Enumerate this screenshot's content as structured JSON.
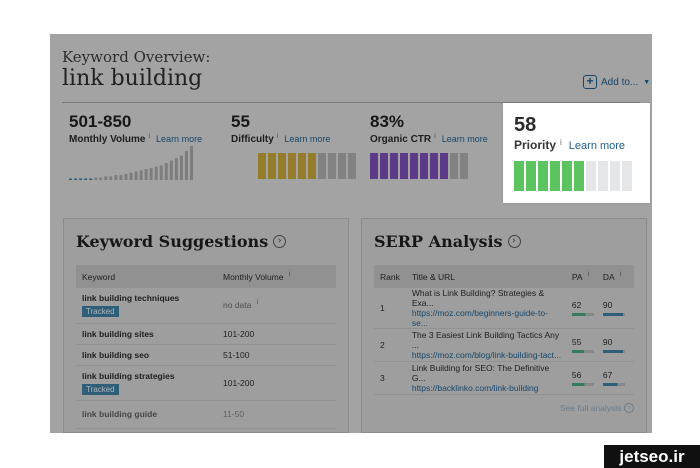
{
  "header": {
    "overview_label": "Keyword Overview:",
    "keyword": "link building",
    "add_to_label": "Add to...",
    "add_icon": "plus-box-icon",
    "caret_icon": "caret-down-icon"
  },
  "metrics": {
    "volume": {
      "value": "501-850",
      "label": "Monthly Volume",
      "learn": "Learn more",
      "info": "i"
    },
    "difficulty": {
      "value": "55",
      "label": "Difficulty",
      "learn": "Learn more",
      "info": "i",
      "filled": 6,
      "total": 10,
      "color": "#c9a93a"
    },
    "ctr": {
      "value": "83%",
      "label": "Organic CTR",
      "learn": "Learn more",
      "info": "i",
      "filled": 8,
      "total": 10,
      "color": "#7c4fb8"
    },
    "priority": {
      "value": "58",
      "label": "Priority",
      "learn": "Learn more",
      "info": "i",
      "filled": 6,
      "total": 10,
      "color": "#5cc45e"
    }
  },
  "volume_trend": [
    1,
    1,
    1,
    1,
    1,
    2,
    2,
    3,
    3,
    4,
    4,
    5,
    6,
    7,
    8,
    9,
    10,
    11,
    12,
    14,
    16,
    18,
    20,
    24,
    28
  ],
  "keyword_suggestions": {
    "title": "Keyword Suggestions",
    "columns": [
      "Keyword",
      "Monthly Volume"
    ],
    "info": "i",
    "rows": [
      {
        "keyword": "link building techniques",
        "tag": "Tracked",
        "volume": "no data"
      },
      {
        "keyword": "link building sites",
        "tag": "",
        "volume": "101-200"
      },
      {
        "keyword": "link building seo",
        "tag": "",
        "volume": "51-100"
      },
      {
        "keyword": "link building strategies",
        "tag": "Tracked",
        "volume": "101-200"
      },
      {
        "keyword": "link building guide",
        "tag": "",
        "volume": "11-50"
      }
    ]
  },
  "serp_analysis": {
    "title": "SERP Analysis",
    "columns": [
      "Rank",
      "Title & URL",
      "PA",
      "DA"
    ],
    "info": "i",
    "rows": [
      {
        "rank": "1",
        "title": "What is Link Building? Strategies & Exa...",
        "url": "https://moz.com/beginners-guide-to-se...",
        "pa": "62",
        "da": "90"
      },
      {
        "rank": "2",
        "title": "The 3 Easiest Link Building Tactics Any ...",
        "url": "https://moz.com/blog/link-building-tact...",
        "pa": "55",
        "da": "90"
      },
      {
        "rank": "3",
        "title": "Link Building for SEO: The Definitive G...",
        "url": "https://backlinko.com/link-building",
        "pa": "56",
        "da": "67"
      }
    ],
    "see_full": "See full analysis"
  },
  "watermark": "jetseo.ir"
}
